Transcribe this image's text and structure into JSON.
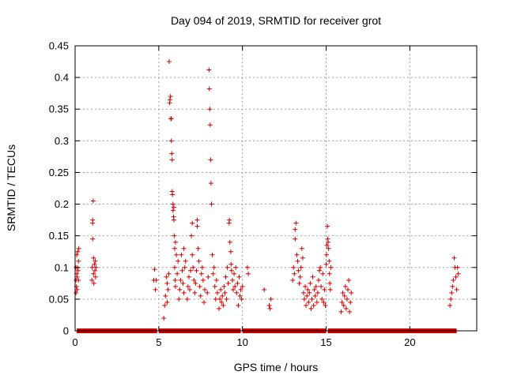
{
  "chart_data": {
    "type": "scatter",
    "title": "Day 094 of 2019, SRMTID for receiver grot",
    "xlabel": "GPS time / hours",
    "ylabel": "SRMTID / TECUs",
    "xlim": [
      0,
      24
    ],
    "ylim": [
      0,
      0.45
    ],
    "xticks": [
      0,
      5,
      10,
      15,
      20
    ],
    "yticks": [
      0,
      0.05,
      0.1,
      0.15,
      0.2,
      0.25,
      0.3,
      0.35,
      0.4,
      0.45
    ],
    "ytick_labels": [
      "0",
      "0.05",
      "0.1",
      "0.15",
      "0.2",
      "0.25",
      "0.3",
      "0.35",
      "0.4",
      "0.45"
    ],
    "grid": true,
    "marker": "plus",
    "color": "#d00000",
    "zero_segments": [
      [
        0.1,
        4.9
      ],
      [
        5.0,
        9.9
      ],
      [
        10.0,
        15.0
      ],
      [
        15.1,
        22.8
      ]
    ],
    "series": [
      {
        "points": [
          [
            0.05,
            0.06
          ],
          [
            0.05,
            0.08
          ],
          [
            0.05,
            0.1
          ],
          [
            0.08,
            0.07
          ],
          [
            0.1,
            0.09
          ],
          [
            0.1,
            0.12
          ],
          [
            0.12,
            0.065
          ],
          [
            0.12,
            0.085
          ],
          [
            0.15,
            0.1
          ],
          [
            0.15,
            0.125
          ],
          [
            0.18,
            0.095
          ],
          [
            0.2,
            0.08
          ],
          [
            0.2,
            0.11
          ],
          [
            0.22,
            0.13
          ],
          [
            1.0,
            0.08
          ],
          [
            1.02,
            0.1
          ],
          [
            1.05,
            0.145
          ],
          [
            1.05,
            0.17
          ],
          [
            1.05,
            0.175
          ],
          [
            1.08,
            0.205
          ],
          [
            1.1,
            0.09
          ],
          [
            1.1,
            0.115
          ],
          [
            1.12,
            0.075
          ],
          [
            1.15,
            0.105
          ],
          [
            1.18,
            0.095
          ],
          [
            1.2,
            0.11
          ],
          [
            1.22,
            0.085
          ],
          [
            1.25,
            0.1
          ],
          [
            4.7,
            0.08
          ],
          [
            4.75,
            0.097
          ],
          [
            4.8,
            0.065
          ],
          [
            4.85,
            0.08
          ],
          [
            5.3,
            0.02
          ],
          [
            5.35,
            0.04
          ],
          [
            5.4,
            0.055
          ],
          [
            5.45,
            0.085
          ],
          [
            5.5,
            0.045
          ],
          [
            5.5,
            0.075
          ],
          [
            5.55,
            0.065
          ],
          [
            5.6,
            0.09
          ],
          [
            5.62,
            0.425
          ],
          [
            5.65,
            0.36
          ],
          [
            5.67,
            0.365
          ],
          [
            5.7,
            0.37
          ],
          [
            5.72,
            0.335
          ],
          [
            5.75,
            0.335
          ],
          [
            5.75,
            0.3
          ],
          [
            5.78,
            0.28
          ],
          [
            5.8,
            0.27
          ],
          [
            5.8,
            0.22
          ],
          [
            5.82,
            0.215
          ],
          [
            5.85,
            0.2
          ],
          [
            5.85,
            0.19
          ],
          [
            5.88,
            0.18
          ],
          [
            5.9,
            0.175
          ],
          [
            5.9,
            0.195
          ],
          [
            5.92,
            0.15
          ],
          [
            5.95,
            0.13
          ],
          [
            5.95,
            0.1
          ],
          [
            5.98,
            0.08
          ],
          [
            6.0,
            0.07
          ],
          [
            6.0,
            0.14
          ],
          [
            6.05,
            0.12
          ],
          [
            6.1,
            0.09
          ],
          [
            6.15,
            0.11
          ],
          [
            6.2,
            0.05
          ],
          [
            6.25,
            0.065
          ],
          [
            6.3,
            0.08
          ],
          [
            6.35,
            0.12
          ],
          [
            6.4,
            0.095
          ],
          [
            6.45,
            0.075
          ],
          [
            6.5,
            0.06
          ],
          [
            6.5,
            0.13
          ],
          [
            6.55,
            0.1
          ],
          [
            6.6,
            0.11
          ],
          [
            6.7,
            0.05
          ],
          [
            6.75,
            0.07
          ],
          [
            6.8,
            0.085
          ],
          [
            6.85,
            0.065
          ],
          [
            6.9,
            0.095
          ],
          [
            6.95,
            0.15
          ],
          [
            7.0,
            0.17
          ],
          [
            7.0,
            0.12
          ],
          [
            7.05,
            0.1
          ],
          [
            7.1,
            0.08
          ],
          [
            7.15,
            0.06
          ],
          [
            7.2,
            0.075
          ],
          [
            7.25,
            0.095
          ],
          [
            7.3,
            0.165
          ],
          [
            7.3,
            0.175
          ],
          [
            7.35,
            0.13
          ],
          [
            7.4,
            0.11
          ],
          [
            7.45,
            0.07
          ],
          [
            7.5,
            0.055
          ],
          [
            7.55,
            0.09
          ],
          [
            7.6,
            0.1
          ],
          [
            7.65,
            0.08
          ],
          [
            7.7,
            0.045
          ],
          [
            7.75,
            0.065
          ],
          [
            7.9,
            0.06
          ],
          [
            7.95,
            0.085
          ],
          [
            8.0,
            0.412
          ],
          [
            8.02,
            0.382
          ],
          [
            8.05,
            0.35
          ],
          [
            8.07,
            0.325
          ],
          [
            8.1,
            0.27
          ],
          [
            8.12,
            0.233
          ],
          [
            8.15,
            0.2
          ],
          [
            8.2,
            0.12
          ],
          [
            8.25,
            0.09
          ],
          [
            8.3,
            0.1
          ],
          [
            8.35,
            0.07
          ],
          [
            8.4,
            0.05
          ],
          [
            8.45,
            0.08
          ],
          [
            8.5,
            0.06
          ],
          [
            8.6,
            0.035
          ],
          [
            8.65,
            0.05
          ],
          [
            8.7,
            0.065
          ],
          [
            8.75,
            0.045
          ],
          [
            8.8,
            0.055
          ],
          [
            8.85,
            0.04
          ],
          [
            8.9,
            0.07
          ],
          [
            8.95,
            0.06
          ],
          [
            9.0,
            0.085
          ],
          [
            9.05,
            0.05
          ],
          [
            9.1,
            0.1
          ],
          [
            9.15,
            0.075
          ],
          [
            9.2,
            0.17
          ],
          [
            9.22,
            0.175
          ],
          [
            9.25,
            0.14
          ],
          [
            9.3,
            0.125
          ],
          [
            9.32,
            0.105
          ],
          [
            9.35,
            0.095
          ],
          [
            9.4,
            0.08
          ],
          [
            9.45,
            0.065
          ],
          [
            9.5,
            0.09
          ],
          [
            9.55,
            0.07
          ],
          [
            9.6,
            0.1
          ],
          [
            9.65,
            0.06
          ],
          [
            9.7,
            0.075
          ],
          [
            9.75,
            0.04
          ],
          [
            9.8,
            0.085
          ],
          [
            9.85,
            0.055
          ],
          [
            9.9,
            0.065
          ],
          [
            9.95,
            0.05
          ],
          [
            10.0,
            0.07
          ],
          [
            10.3,
            0.1
          ],
          [
            10.35,
            0.09
          ],
          [
            11.3,
            0.065
          ],
          [
            11.6,
            0.04
          ],
          [
            11.65,
            0.035
          ],
          [
            11.7,
            0.05
          ],
          [
            13.0,
            0.08
          ],
          [
            13.05,
            0.1
          ],
          [
            13.1,
            0.09
          ],
          [
            13.15,
            0.145
          ],
          [
            13.15,
            0.16
          ],
          [
            13.2,
            0.17
          ],
          [
            13.25,
            0.12
          ],
          [
            13.3,
            0.11
          ],
          [
            13.35,
            0.095
          ],
          [
            13.4,
            0.075
          ],
          [
            13.45,
            0.085
          ],
          [
            13.5,
            0.1
          ],
          [
            13.55,
            0.13
          ],
          [
            13.6,
            0.115
          ],
          [
            13.65,
            0.06
          ],
          [
            13.7,
            0.05
          ],
          [
            13.75,
            0.07
          ],
          [
            13.8,
            0.04
          ],
          [
            13.85,
            0.055
          ],
          [
            13.9,
            0.065
          ],
          [
            13.95,
            0.045
          ],
          [
            14.0,
            0.06
          ],
          [
            14.05,
            0.075
          ],
          [
            14.1,
            0.035
          ],
          [
            14.15,
            0.05
          ],
          [
            14.2,
            0.085
          ],
          [
            14.25,
            0.04
          ],
          [
            14.3,
            0.065
          ],
          [
            14.35,
            0.055
          ],
          [
            14.4,
            0.07
          ],
          [
            14.45,
            0.045
          ],
          [
            14.5,
            0.06
          ],
          [
            14.55,
            0.08
          ],
          [
            14.6,
            0.095
          ],
          [
            14.65,
            0.1
          ],
          [
            14.7,
            0.07
          ],
          [
            14.75,
            0.05
          ],
          [
            14.8,
            0.09
          ],
          [
            14.85,
            0.045
          ],
          [
            14.9,
            0.065
          ],
          [
            14.95,
            0.04
          ],
          [
            15.0,
            0.105
          ],
          [
            15.02,
            0.12
          ],
          [
            15.05,
            0.135
          ],
          [
            15.08,
            0.165
          ],
          [
            15.1,
            0.145
          ],
          [
            15.12,
            0.14
          ],
          [
            15.15,
            0.13
          ],
          [
            15.18,
            0.11
          ],
          [
            15.2,
            0.09
          ],
          [
            15.22,
            0.075
          ],
          [
            15.25,
            0.065
          ],
          [
            15.28,
            0.1
          ],
          [
            15.9,
            0.03
          ],
          [
            15.95,
            0.045
          ],
          [
            16.0,
            0.06
          ],
          [
            16.05,
            0.04
          ],
          [
            16.1,
            0.055
          ],
          [
            16.15,
            0.07
          ],
          [
            16.2,
            0.035
          ],
          [
            16.25,
            0.05
          ],
          [
            16.3,
            0.065
          ],
          [
            16.35,
            0.08
          ],
          [
            16.4,
            0.03
          ],
          [
            16.45,
            0.045
          ],
          [
            16.5,
            0.06
          ],
          [
            22.4,
            0.04
          ],
          [
            22.45,
            0.05
          ],
          [
            22.5,
            0.06
          ],
          [
            22.55,
            0.07
          ],
          [
            22.6,
            0.08
          ],
          [
            22.65,
            0.115
          ],
          [
            22.7,
            0.1
          ],
          [
            22.75,
            0.085
          ],
          [
            22.8,
            0.065
          ],
          [
            22.85,
            0.1
          ],
          [
            22.9,
            0.09
          ]
        ]
      }
    ]
  }
}
